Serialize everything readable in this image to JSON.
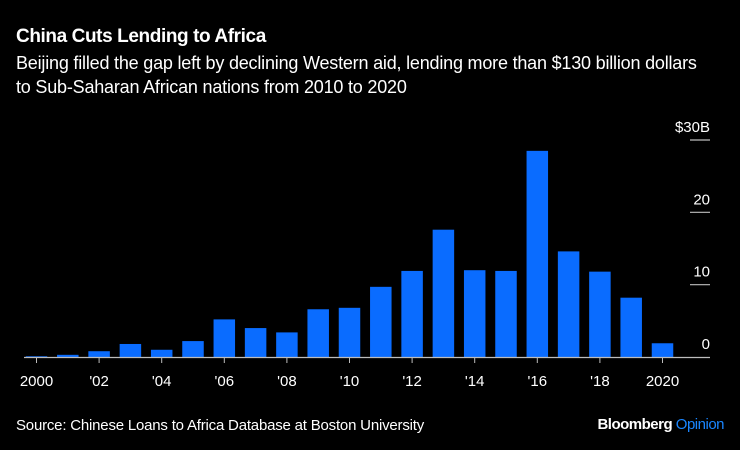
{
  "header": {
    "title": "China Cuts Lending to Africa",
    "subtitle": "Beijing filled the gap left by declining Western aid, lending more than $130 billion dollars to Sub-Saharan African nations from 2010 to 2020"
  },
  "footer": {
    "source": "Source: Chinese Loans to Africa Database at Boston University",
    "brand_main": "Bloomberg",
    "brand_accent": "Opinion"
  },
  "colors": {
    "bar": "#0a6cff",
    "accent": "#1a86ff",
    "axis": "#bdbdbd"
  },
  "chart_data": {
    "type": "bar",
    "title": "China Cuts Lending to Africa",
    "xlabel": "",
    "ylabel": "",
    "categories": [
      "2000",
      "2001",
      "2002",
      "2003",
      "2004",
      "2005",
      "2006",
      "2007",
      "2008",
      "2009",
      "2010",
      "2011",
      "2012",
      "2013",
      "2014",
      "2015",
      "2016",
      "2017",
      "2018",
      "2019",
      "2020"
    ],
    "values": [
      0.1,
      0.3,
      0.8,
      1.8,
      1.0,
      2.2,
      5.2,
      4.0,
      3.4,
      6.6,
      6.8,
      9.7,
      11.9,
      17.6,
      12.0,
      11.9,
      28.5,
      14.6,
      11.8,
      8.2,
      1.9
    ],
    "unit": "billion USD",
    "ylim": [
      0,
      30
    ],
    "y_ticks": [
      {
        "value": 0,
        "label": "0"
      },
      {
        "value": 10,
        "label": "10"
      },
      {
        "value": 20,
        "label": "20"
      },
      {
        "value": 30,
        "label": "$30B"
      }
    ],
    "x_ticks": [
      {
        "category": "2000",
        "label": "2000"
      },
      {
        "category": "2002",
        "label": "'02"
      },
      {
        "category": "2004",
        "label": "'04"
      },
      {
        "category": "2006",
        "label": "'06"
      },
      {
        "category": "2008",
        "label": "'08"
      },
      {
        "category": "2010",
        "label": "'10"
      },
      {
        "category": "2012",
        "label": "'12"
      },
      {
        "category": "2014",
        "label": "'14"
      },
      {
        "category": "2016",
        "label": "'16"
      },
      {
        "category": "2018",
        "label": "'18"
      },
      {
        "category": "2020",
        "label": "2020"
      }
    ],
    "y_axis_side": "right",
    "grid": false,
    "legend": "none"
  }
}
